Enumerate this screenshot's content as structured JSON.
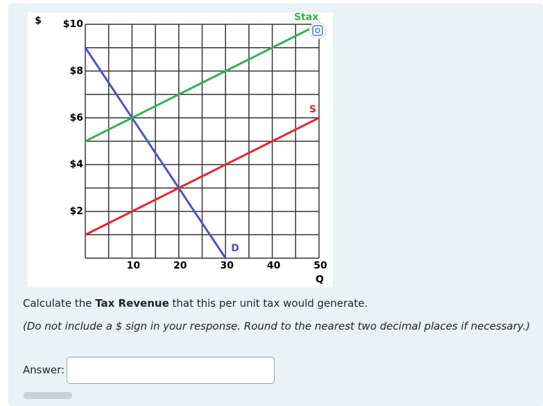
{
  "chart_data": {
    "type": "line",
    "x_label": "Q",
    "y_label": "$",
    "x": [
      0,
      10,
      20,
      30,
      40,
      50
    ],
    "series": [
      {
        "name": "D",
        "color": "#4a4fd0",
        "values": [
          9,
          6,
          3,
          0,
          null,
          null
        ]
      },
      {
        "name": "Stax",
        "color": "#2fb24c",
        "values": [
          5,
          6,
          7,
          8,
          9,
          10
        ]
      },
      {
        "name": "S",
        "color": "#e4262b",
        "values": [
          1,
          2,
          3,
          4,
          5,
          6
        ]
      }
    ],
    "xlim": [
      0,
      50
    ],
    "xticks": [
      10,
      20,
      30,
      40,
      50
    ],
    "ylim": [
      0,
      10
    ],
    "yticks": [
      {
        "value": 2,
        "label": "$2"
      },
      {
        "value": 4,
        "label": "$4"
      },
      {
        "value": 6,
        "label": "$6"
      },
      {
        "value": 8,
        "label": "$8"
      },
      {
        "value": 10,
        "label": "$10"
      }
    ],
    "grid": true
  },
  "question": {
    "before": "Calculate the ",
    "bold": "Tax Revenue",
    "after": " that this per unit tax would generate.",
    "note": "(Do not include a $ sign in your response. Round to the nearest two decimal places if necessary.)"
  },
  "answer": {
    "label": "Answer:"
  }
}
